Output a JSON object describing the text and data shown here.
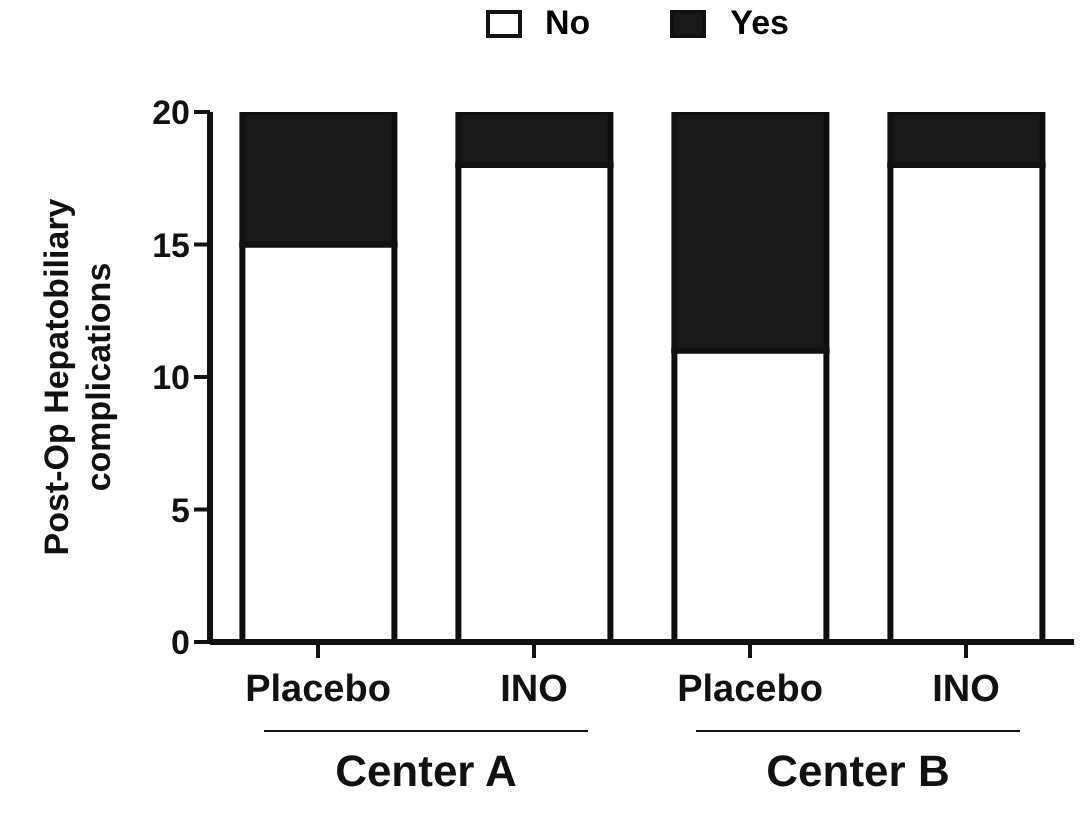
{
  "chart_data": {
    "type": "bar",
    "ylabel": "Post-Op Hepatobiliary complications",
    "categories": [
      "Placebo",
      "INO",
      "Placebo",
      "INO"
    ],
    "series": [
      {
        "name": "No",
        "color": "#ffffff",
        "values": [
          15,
          18,
          11,
          18
        ]
      },
      {
        "name": "Yes",
        "color": "#1a1a1a",
        "values": [
          5,
          2,
          9,
          2
        ]
      }
    ],
    "stacked": true,
    "ylim": [
      0,
      20
    ],
    "yticks": [
      0,
      5,
      10,
      15,
      20
    ],
    "legend": "top",
    "grid": false,
    "annotations": [
      "Center A",
      "Center B"
    ]
  }
}
